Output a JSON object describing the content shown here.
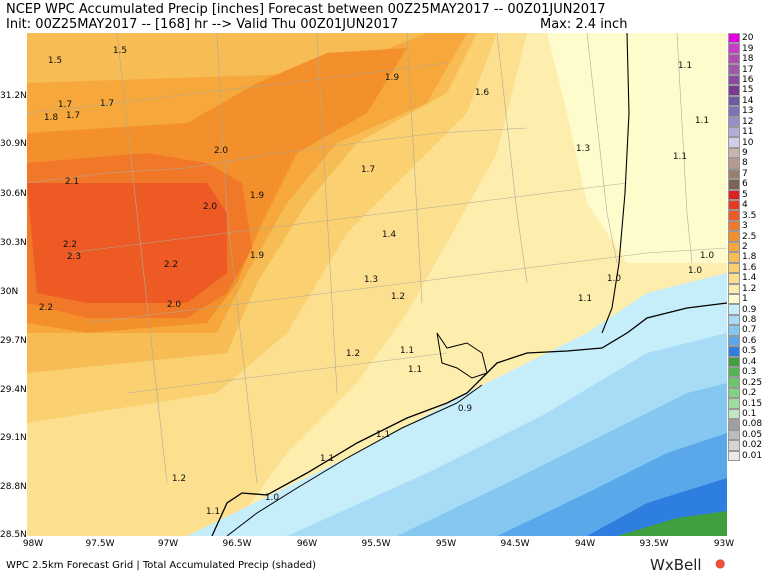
{
  "header": {
    "line1": "NCEP WPC Accumulated Precip [inches] Forecast between 00Z25MAY2017 -- 00Z01JUN2017",
    "line2": "Init: 00Z25MAY2017 -- [168] hr --> Valid Thu 00Z01JUN2017",
    "max": "Max: 2.4 inch"
  },
  "lat_labels": [
    "31.2N",
    "30.9N",
    "30.6N",
    "30.3N",
    "30N",
    "29.7N",
    "29.4N",
    "29.1N",
    "28.8N",
    "28.5N"
  ],
  "lon_labels": [
    "98W",
    "97.5W",
    "97W",
    "96.5W",
    "96W",
    "95.5W",
    "95W",
    "94.5W",
    "94W",
    "93.5W",
    "93W"
  ],
  "legend": {
    "labels": [
      "20",
      "19",
      "18",
      "17",
      "16",
      "15",
      "14",
      "13",
      "12",
      "11",
      "10",
      "9",
      "8",
      "7",
      "6",
      "5",
      "4",
      "3.5",
      "3",
      "2.5",
      "2",
      "1.8",
      "1.6",
      "1.4",
      "1.2",
      "1",
      "0.9",
      "0.8",
      "0.7",
      "0.6",
      "0.5",
      "0.4",
      "0.3",
      "0.25",
      "0.2",
      "0.15",
      "0.1",
      "0.08",
      "0.05",
      "0.02",
      "0.01"
    ],
    "colors": [
      "#e400e4",
      "#c83cc8",
      "#b04cb0",
      "#9c5aa8",
      "#8a4aa0",
      "#7a3a90",
      "#6e5aa0",
      "#7e72b4",
      "#9a8ec8",
      "#b6aad8",
      "#d4cce8",
      "#c8b4ac",
      "#b49a90",
      "#9a7e72",
      "#7e6054",
      "#e02020",
      "#e83a20",
      "#ee5a24",
      "#f07828",
      "#f4902c",
      "#f6a83c",
      "#f8bc54",
      "#fad070",
      "#fce090",
      "#fdeeae",
      "#fefccc",
      "#c6eefa",
      "#a8dcf6",
      "#84c8f2",
      "#5aa8ea",
      "#2e7ee0",
      "#40a040",
      "#54b454",
      "#6cc46c",
      "#84d084",
      "#a0dca0",
      "#c0e8c0",
      "#a0a0a0",
      "#bcbcbc",
      "#d4d4d4",
      "#eaeaea"
    ]
  },
  "values": [
    "1.5",
    "1.5",
    "1.7",
    "1.7",
    "1.8",
    "1.7",
    "1.9",
    "1.6",
    "1.1",
    "1.1",
    "2.0",
    "1.7",
    "1.3",
    "1.1",
    "2.1",
    "1.9",
    "2.0",
    "1.4",
    "2.2",
    "2.3",
    "2.2",
    "1.9",
    "1.3",
    "1.0",
    "1.0",
    "2.2",
    "2.0",
    "1.2",
    "1.0",
    "1.1",
    "1.1",
    "1.2",
    "1.1",
    "0.9",
    "1.1",
    "1.1",
    "1.2",
    "1.0",
    "1.1"
  ],
  "footer": "WPC 2.5km Forecast Grid | Total Accumulated Precip (shaded)",
  "brand": "WxBell"
}
